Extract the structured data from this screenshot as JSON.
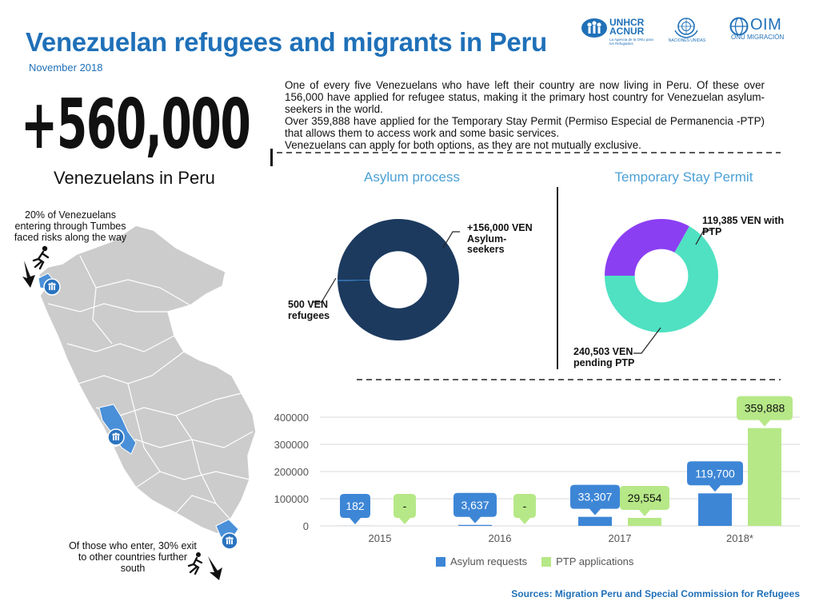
{
  "header": {
    "title": "Venezuelan refugees and migrants in Peru",
    "date": "November 2018"
  },
  "logos": {
    "unhcr_line1": "UNHCR",
    "unhcr_line2": "ACNUR",
    "unhcr_tagline": "La Agencia de la ONU para los Refugiados",
    "un": "NACIONES UNIDAS",
    "oim_name": "OIM",
    "oim_sub": "ONU MIGRACIÓN",
    "colors": {
      "un_blue": "#1f70b8"
    }
  },
  "headline": {
    "number": "+560,000",
    "caption": "Venezuelans in Peru"
  },
  "intro": [
    "One of every five Venezuelans who have left their country are now living in Peru. Of these over 156,000 have applied for refugee status, making it the primary host country for Venezuelan asylum-seekers in the world.",
    "Over 359,888 have applied for the Temporary Stay Permit (Permiso Especial de Permanencia -PTP) that allows them to access work and some basic services.",
    "Venezuelans can apply for both options, as they are not mutually exclusive."
  ],
  "map": {
    "note_top": "20% of Venezuelans entering through Tumbes faced risks along the way",
    "note_bottom": "Of those who enter, 30% exit to other countries further south",
    "icons": [
      "running-person-icon",
      "arrow-down-icon",
      "refugee-family-icon"
    ],
    "colors": {
      "land": "#cccccc",
      "highlight": "#4a90d9"
    }
  },
  "chart_data": [
    {
      "type": "pie",
      "donut": true,
      "title": "Asylum process",
      "slices": [
        {
          "label": "+156,000 VEN Asylum-seekers",
          "value": 156000,
          "color": "#1c3a5e"
        },
        {
          "label": "500 VEN refugees",
          "value": 500,
          "color": "#2a74c0"
        }
      ]
    },
    {
      "type": "pie",
      "donut": true,
      "title": "Temporary Stay Permit",
      "slices": [
        {
          "label": "119,385 VEN with PTP",
          "value": 119385,
          "color": "#8b3ff2"
        },
        {
          "label": "240,503 VEN pending PTP",
          "value": 240503,
          "color": "#4fe1c2"
        }
      ]
    },
    {
      "type": "bar",
      "categories": [
        "2015",
        "2016",
        "2017",
        "2018*"
      ],
      "series": [
        {
          "name": "Asylum requests",
          "color": "#3d86d6",
          "values": [
            182,
            3637,
            33307,
            119700
          ],
          "labels": [
            "182",
            "3,637",
            "33,307",
            "119,700"
          ]
        },
        {
          "name": "PTP applications",
          "color": "#b6e887",
          "values": [
            0,
            0,
            29554,
            359888
          ],
          "labels": [
            "-",
            "-",
            "29,554",
            "359,888"
          ]
        }
      ],
      "ylim": [
        0,
        400000
      ],
      "yticks": [
        "0",
        "100000",
        "200000",
        "300000",
        "400000"
      ],
      "legend": "bottom",
      "grid": true
    }
  ],
  "footer": {
    "source": "Sources: Migration Peru and Special Commission for Refugees"
  }
}
